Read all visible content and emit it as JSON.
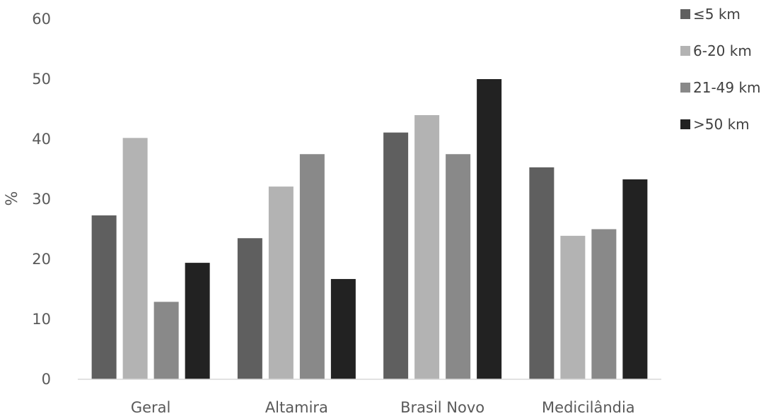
{
  "chart_data": {
    "type": "bar",
    "title": "",
    "xlabel": "",
    "ylabel": "%",
    "ylim": [
      0,
      60
    ],
    "yticks": [
      0,
      10,
      20,
      30,
      40,
      50,
      60
    ],
    "grid": false,
    "legend_position": "top-right",
    "categories": [
      "Geral",
      "Altamira",
      "Brasil Novo",
      "Medicilândia"
    ],
    "series": [
      {
        "name": "≤5 km",
        "color": "#5f5f5f",
        "values": [
          27.3,
          23.5,
          41.1,
          35.3
        ]
      },
      {
        "name": "6-20 km",
        "color": "#b3b3b3",
        "values": [
          40.2,
          32.1,
          44.0,
          23.9
        ]
      },
      {
        "name": "21-49 km",
        "color": "#898989",
        "values": [
          12.9,
          37.5,
          37.5,
          25.0
        ]
      },
      {
        "name": ">50 km",
        "color": "#222222",
        "values": [
          19.4,
          16.7,
          50.0,
          33.3
        ]
      }
    ]
  }
}
